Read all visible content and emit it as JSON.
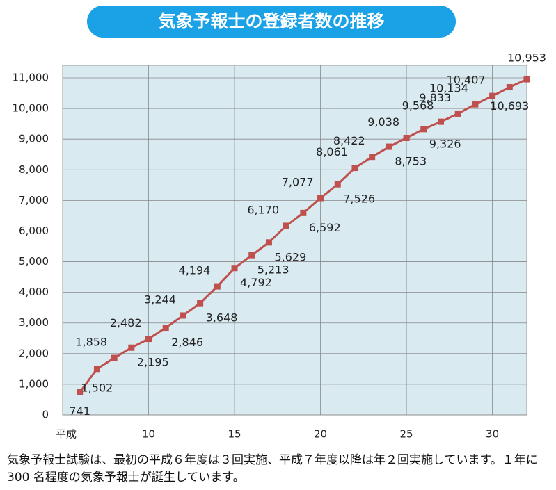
{
  "chart_data": {
    "type": "line",
    "title": "気象予報士の登録者数の推移",
    "x_label": "平成",
    "x": [
      6,
      7,
      8,
      9,
      10,
      11,
      12,
      13,
      14,
      15,
      16,
      17,
      18,
      19,
      20,
      21,
      22,
      23,
      24,
      25,
      26,
      27,
      28,
      29,
      30,
      31,
      32
    ],
    "series": [
      {
        "color": "#c0504d",
        "values": [
          741,
          1502,
          1858,
          2195,
          2482,
          2846,
          3244,
          3648,
          4194,
          4792,
          5213,
          5629,
          6170,
          6592,
          7077,
          7526,
          8061,
          8422,
          8753,
          9038,
          9326,
          9568,
          9833,
          10134,
          10407,
          10693,
          10953
        ],
        "value_labels": [
          "741",
          "1,502",
          "1,858",
          "2,195",
          "2,482",
          "2,846",
          "3,244",
          "3,648",
          "4,194",
          "4,792",
          "5,213",
          "5,629",
          "6,170",
          "6,592",
          "7,077",
          "7,526",
          "8,061",
          "8,422",
          "8,753",
          "9,038",
          "9,326",
          "9,568",
          "9,833",
          "10,134",
          "10,407",
          "10,693",
          "10,953"
        ]
      }
    ],
    "xlim": [
      5,
      32
    ],
    "xticks": [
      10,
      15,
      20,
      25,
      30
    ],
    "ylim": [
      0,
      11000
    ],
    "yticks": [
      0,
      {
        "value": 1000,
        "label": "1,000"
      },
      {
        "value": 2000,
        "label": "2,000"
      },
      {
        "value": 3000,
        "label": "3,000"
      },
      {
        "value": 4000,
        "label": "4,000"
      },
      {
        "value": 5000,
        "label": "5,000"
      },
      {
        "value": 6000,
        "label": "6,000"
      },
      {
        "value": 7000,
        "label": "7,000"
      },
      {
        "value": 8000,
        "label": "8,000"
      },
      {
        "value": 9000,
        "label": "9,000"
      },
      {
        "value": 10000,
        "label": "10,000"
      },
      {
        "value": 11000,
        "label": "11,000"
      }
    ],
    "grid": true,
    "note": "気象予報士試験は、最初の平成６年度は３回実施、平成７年度以降は年２回実施しています。１年に 300 名程度の気象予報士が誕生しています。"
  }
}
